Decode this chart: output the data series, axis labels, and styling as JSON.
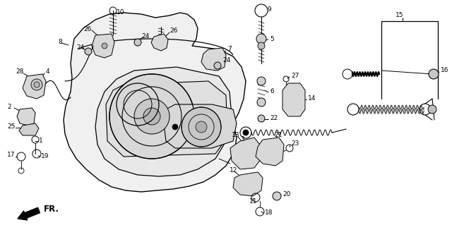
{
  "bg_color": "#ffffff",
  "line_color": "#000000",
  "label_font_size": 6.5,
  "figsize": [
    6.4,
    3.19
  ],
  "dpi": 100
}
